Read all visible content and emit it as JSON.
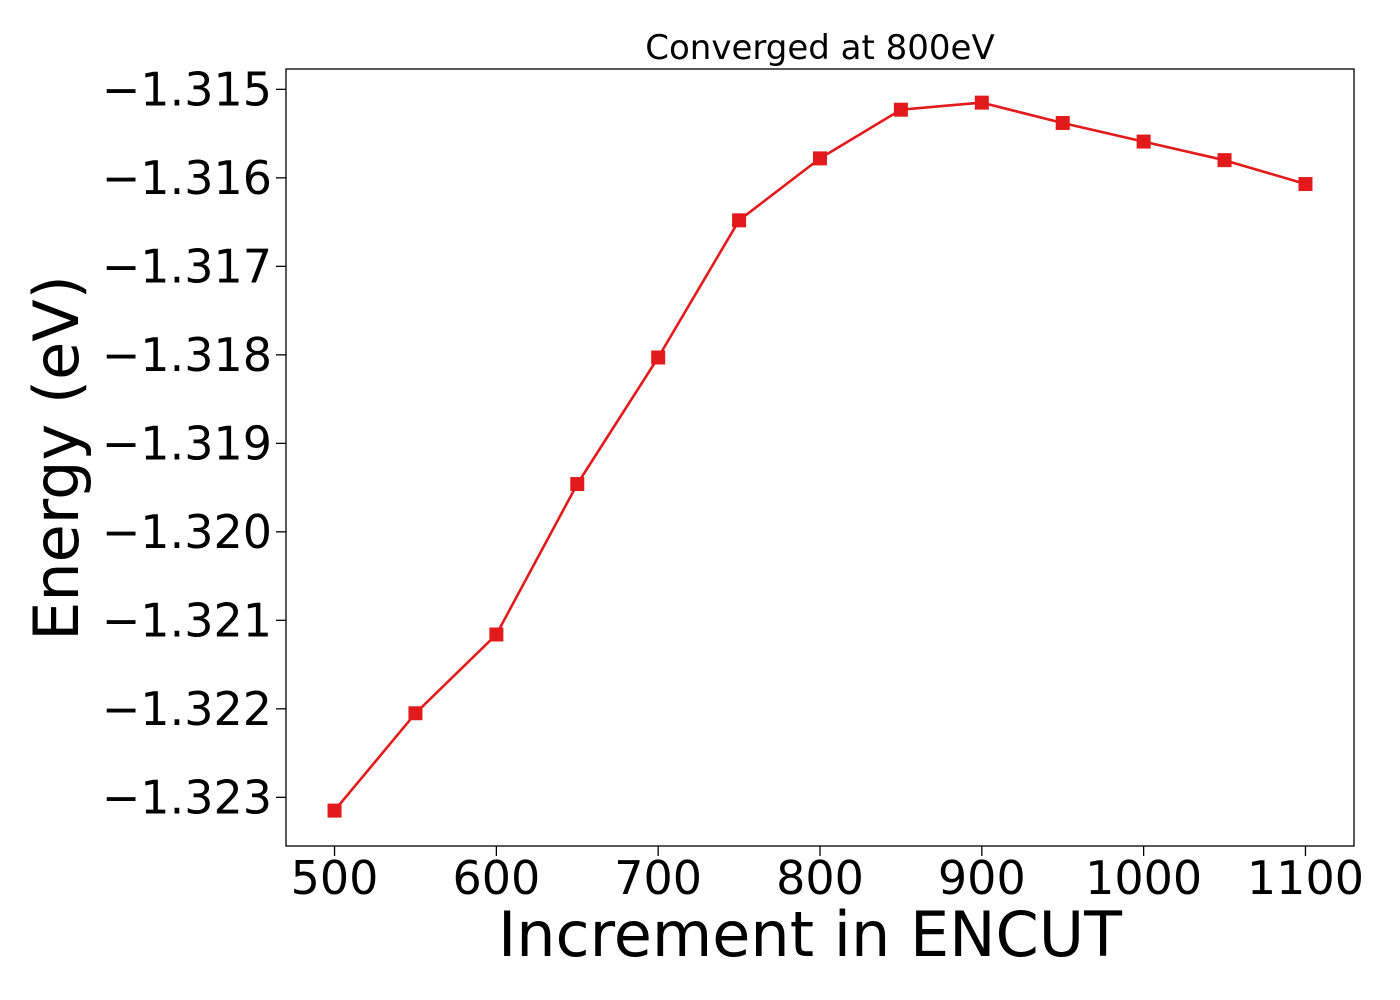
{
  "chart_data": {
    "type": "line",
    "title": "Converged at 800eV",
    "xlabel": "Increment in ENCUT",
    "ylabel": "Energy (eV)",
    "x": [
      500,
      550,
      600,
      650,
      700,
      750,
      800,
      850,
      900,
      950,
      1000,
      1050,
      1100
    ],
    "series": [
      {
        "values": [
          -1.32315,
          -1.32205,
          -1.32116,
          -1.31946,
          -1.31803,
          -1.31648,
          -1.31578,
          -1.31523,
          -1.31515,
          -1.31538,
          -1.31559,
          -1.3158,
          -1.31607
        ]
      }
    ],
    "xticks": [
      500,
      600,
      700,
      800,
      900,
      1000,
      1100
    ],
    "xtick_labels": [
      "500",
      "600",
      "700",
      "800",
      "900",
      "1000",
      "1100"
    ],
    "yticks": [
      -1.323,
      -1.322,
      -1.321,
      -1.32,
      -1.319,
      -1.318,
      -1.317,
      -1.316,
      -1.315
    ],
    "ytick_labels": [
      "−1.323",
      "−1.322",
      "−1.321",
      "−1.320",
      "−1.319",
      "−1.318",
      "−1.317",
      "−1.316",
      "−1.315"
    ],
    "xlim": [
      470,
      1130
    ],
    "ylim": [
      -1.32355,
      -1.31477
    ],
    "grid": false,
    "legend": false,
    "line_color": "#e31a1c",
    "marker": "square"
  }
}
